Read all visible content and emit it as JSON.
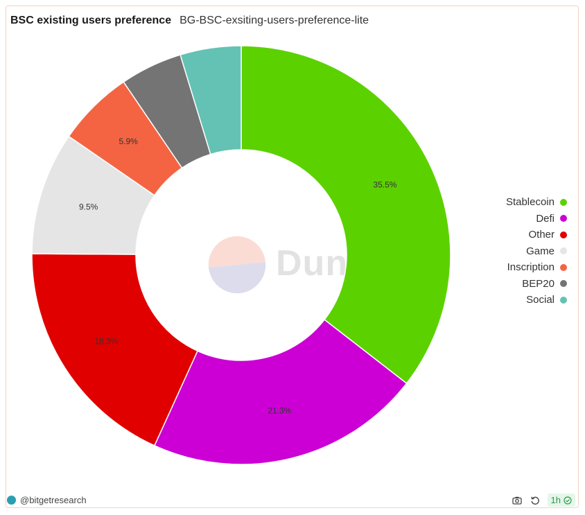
{
  "header": {
    "title": "BSC existing users preference",
    "subtitle": "BG-BSC-exsiting-users-preference-lite"
  },
  "chart_data": {
    "type": "pie",
    "title": "BSC existing users preference",
    "labels": [
      "Stablecoin",
      "Defi",
      "Other",
      "Game",
      "Inscription",
      "BEP20",
      "Social"
    ],
    "values": [
      35.5,
      21.3,
      18.3,
      9.5,
      5.9,
      4.8,
      4.7
    ],
    "colors": [
      "#5cd100",
      "#cc00d4",
      "#e00000",
      "#e5e5e5",
      "#f46443",
      "#747474",
      "#63c2b3"
    ],
    "data_labels": [
      "35.5%",
      "21.3%",
      "18.3%",
      "9.5%",
      "5.9%",
      "",
      ""
    ],
    "donut": true,
    "legend_position": "right"
  },
  "watermark": {
    "text": "Dune"
  },
  "footer": {
    "handle": "@bitgetresearch",
    "refresh": "1h",
    "icons": [
      "camera-icon",
      "refresh-icon",
      "check-circle-icon"
    ]
  }
}
